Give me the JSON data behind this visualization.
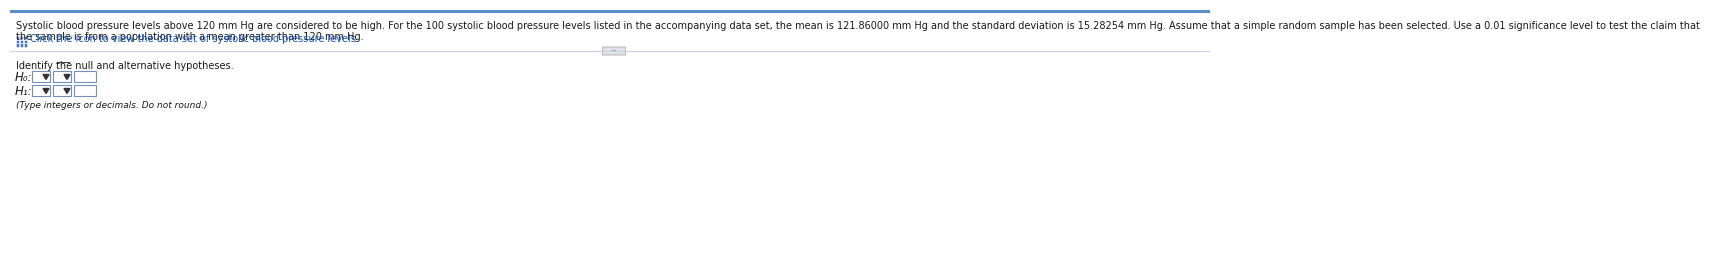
{
  "bg_color": "#ffffff",
  "top_bar_color": "#5b8cc8",
  "separator_color": "#c8d0dc",
  "text_color_dark": "#1a1a1a",
  "text_color_blue": "#1155bb",
  "paragraph1_line1": "Systolic blood pressure levels above 120 mm Hg are considered to be high. For the 100 systolic blood pressure levels listed in the accompanying data set, the mean is 121.86000 mm Hg and the standard deviation is 15.28254 mm Hg. Assume that a simple random sample has been selected. Use a 0.01 significance level to test the claim that",
  "paragraph1_line2": "the sample is from a population with a mean greater than 120 mm Hg.",
  "click_line": "Click the icon to view the data set of systolic blood pressure levels.",
  "identify_text": "Identify the null and alternative hypotheses.",
  "H0_label": "H₀:",
  "H1_label": "H₁:",
  "type_note": "(Type integers or decimals. Do not round.)",
  "font_size_body": 7.0,
  "font_size_label": 8.5,
  "font_size_small": 6.5
}
